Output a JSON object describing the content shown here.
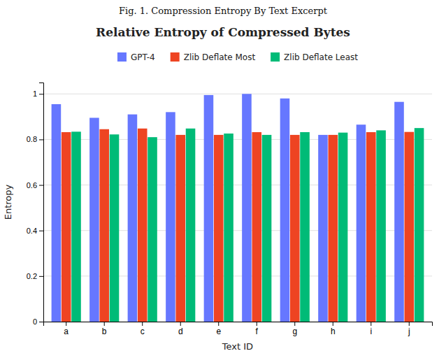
{
  "chart_data": {
    "type": "bar",
    "title": "Relative Entropy of Compressed Bytes",
    "subtitle": "Fig. 1.  Compression Entropy By Text Excerpt",
    "xlabel": "Text ID",
    "ylabel": "Entropy",
    "categories": [
      "a",
      "b",
      "c",
      "d",
      "e",
      "f",
      "g",
      "h",
      "i",
      "j"
    ],
    "series": [
      {
        "name": "GPT-4",
        "color": "#6677ff",
        "values": [
          0.955,
          0.895,
          0.91,
          0.92,
          0.995,
          1.0,
          0.98,
          0.82,
          0.865,
          0.965
        ]
      },
      {
        "name": "Zlib Deflate Most",
        "color": "#ee4422",
        "values": [
          0.832,
          0.845,
          0.848,
          0.82,
          0.82,
          0.832,
          0.82,
          0.82,
          0.832,
          0.833
        ]
      },
      {
        "name": "Zlib Deflate Least",
        "color": "#00bb77",
        "values": [
          0.834,
          0.822,
          0.81,
          0.848,
          0.826,
          0.82,
          0.832,
          0.83,
          0.84,
          0.85
        ]
      }
    ],
    "ylim": [
      0,
      1.05
    ],
    "yticks": [
      0,
      0.2,
      0.4,
      0.6,
      0.8,
      1
    ],
    "grid": true,
    "legend": "top"
  }
}
